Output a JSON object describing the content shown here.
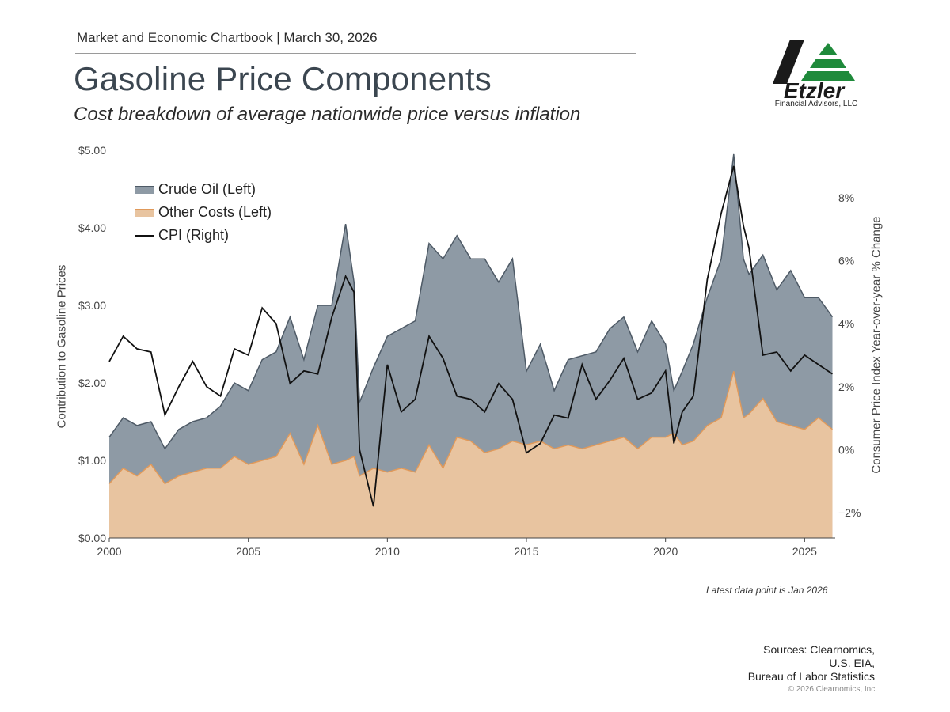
{
  "header": {
    "chartbook": "Market and Economic Chartbook | March 30, 2026",
    "title": "Gasoline Price Components",
    "subtitle": "Cost breakdown of average nationwide price versus inflation"
  },
  "logo": {
    "name": "Etzler",
    "tagline": "Financial Advisors, LLC"
  },
  "footer": {
    "latest": "Latest data point is Jan 2026",
    "sources": [
      "Sources: Clearnomics,",
      "U.S. EIA,",
      "Bureau of Labor Statistics"
    ],
    "copyright": "© 2026 Clearnomics, Inc."
  },
  "chart_data": {
    "type": "area",
    "ylabel": "Contribution to Gasoline Prices",
    "ylabel_right": "Consumer Price Index Year-over-year % Change",
    "x": [
      2000.0,
      2000.5,
      2001.0,
      2001.5,
      2002.0,
      2002.5,
      2003.0,
      2003.5,
      2004.0,
      2004.5,
      2005.0,
      2005.5,
      2006.0,
      2006.5,
      2007.0,
      2007.5,
      2008.0,
      2008.5,
      2008.8,
      2009.0,
      2009.5,
      2010.0,
      2010.5,
      2011.0,
      2011.5,
      2012.0,
      2012.5,
      2013.0,
      2013.5,
      2014.0,
      2014.5,
      2015.0,
      2015.5,
      2016.0,
      2016.5,
      2017.0,
      2017.5,
      2018.0,
      2018.5,
      2019.0,
      2019.5,
      2020.0,
      2020.3,
      2020.6,
      2021.0,
      2021.5,
      2022.0,
      2022.45,
      2022.8,
      2023.0,
      2023.5,
      2024.0,
      2024.5,
      2025.0,
      2025.5,
      2026.0
    ],
    "series": [
      {
        "name": "Crude Oil (Left)",
        "color": "#8e9aa5",
        "total_price_usd": [
          1.3,
          1.55,
          1.45,
          1.5,
          1.15,
          1.4,
          1.5,
          1.55,
          1.7,
          2.0,
          1.9,
          2.3,
          2.4,
          2.85,
          2.3,
          3.0,
          3.0,
          4.05,
          3.3,
          1.75,
          2.2,
          2.6,
          2.7,
          2.8,
          3.8,
          3.6,
          3.9,
          3.6,
          3.6,
          3.3,
          3.6,
          2.15,
          2.5,
          1.9,
          2.3,
          2.35,
          2.4,
          2.7,
          2.85,
          2.4,
          2.8,
          2.5,
          1.9,
          2.15,
          2.5,
          3.1,
          3.6,
          4.95,
          3.6,
          3.4,
          3.65,
          3.2,
          3.45,
          3.1,
          3.1,
          2.85
        ]
      },
      {
        "name": "Other Costs (Left)",
        "color": "#e8c4a0",
        "values_usd": [
          0.7,
          0.9,
          0.8,
          0.95,
          0.7,
          0.8,
          0.85,
          0.9,
          0.9,
          1.05,
          0.95,
          1.0,
          1.05,
          1.35,
          0.95,
          1.45,
          0.95,
          1.0,
          1.05,
          0.8,
          0.9,
          0.85,
          0.9,
          0.85,
          1.2,
          0.9,
          1.3,
          1.25,
          1.1,
          1.15,
          1.25,
          1.2,
          1.25,
          1.15,
          1.2,
          1.15,
          1.2,
          1.25,
          1.3,
          1.15,
          1.3,
          1.3,
          1.35,
          1.2,
          1.25,
          1.45,
          1.55,
          2.15,
          1.55,
          1.6,
          1.8,
          1.5,
          1.45,
          1.4,
          1.55,
          1.4
        ]
      },
      {
        "name": "CPI (Right)",
        "color": "#111111",
        "values_pct": [
          2.8,
          3.6,
          3.2,
          3.1,
          1.1,
          2.0,
          2.8,
          2.0,
          1.7,
          3.2,
          3.0,
          4.5,
          4.0,
          2.1,
          2.5,
          2.4,
          4.2,
          5.5,
          5.0,
          0.0,
          -1.8,
          2.7,
          1.2,
          1.6,
          3.6,
          2.9,
          1.7,
          1.6,
          1.2,
          2.1,
          1.6,
          -0.1,
          0.2,
          1.1,
          1.0,
          2.7,
          1.6,
          2.2,
          2.9,
          1.6,
          1.8,
          2.5,
          0.2,
          1.2,
          1.7,
          5.4,
          7.5,
          9.0,
          7.1,
          6.4,
          3.0,
          3.1,
          2.5,
          3.0,
          2.7,
          2.4
        ]
      }
    ],
    "x_ticks": [
      "2000",
      "2005",
      "2010",
      "2015",
      "2020",
      "2025"
    ],
    "y_ticks_left": [
      "$0.00",
      "$1.00",
      "$2.00",
      "$3.00",
      "$4.00",
      "$5.00"
    ],
    "y_ticks_right": [
      "−2%",
      "0%",
      "2%",
      "4%",
      "6%",
      "8%"
    ],
    "xlim": [
      2000,
      2026.1
    ],
    "ylim_left": [
      0,
      5
    ],
    "ylim_right": [
      -2.8,
      9.5
    ],
    "legend_position": "top-left",
    "grid": false
  }
}
